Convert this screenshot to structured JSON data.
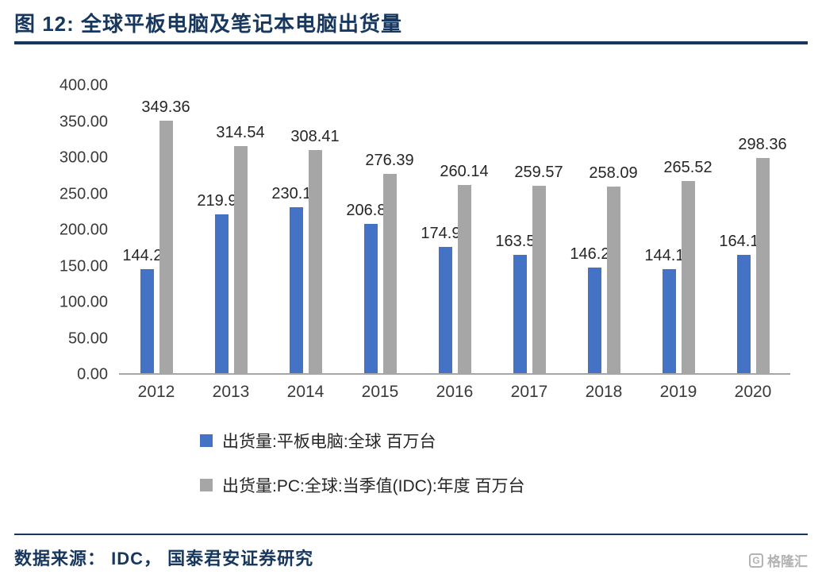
{
  "title": "图 12:  全球平板电脑及笔记本电脑出货量",
  "chart_data": {
    "type": "bar",
    "title": "全球平板电脑及笔记本电脑出货量",
    "categories": [
      "2012",
      "2013",
      "2014",
      "2015",
      "2016",
      "2017",
      "2018",
      "2019",
      "2020"
    ],
    "series": [
      {
        "name": "出货量:平板电脑:全球 百万台",
        "color": "#4472C4",
        "values": [
          144.2,
          219.9,
          230.1,
          206.8,
          174.9,
          163.5,
          146.2,
          144.1,
          164.1
        ]
      },
      {
        "name": "出货量:PC:全球:当季值(IDC):年度 百万台",
        "color": "#A6A6A6",
        "values": [
          349.36,
          314.54,
          308.41,
          276.39,
          260.14,
          259.57,
          258.09,
          265.52,
          298.36
        ]
      }
    ],
    "xlabel": "",
    "ylabel": "",
    "ylim": [
      0,
      400
    ],
    "yticks": [
      "400.00",
      "350.00",
      "300.00",
      "250.00",
      "200.00",
      "150.00",
      "100.00",
      "50.00",
      "0.00"
    ],
    "grid": false,
    "legend_position": "bottom",
    "value_labels": true,
    "unit": "百万台"
  },
  "footer": {
    "source": "数据来源：  IDC，  国泰君安证券研究"
  },
  "watermark": {
    "logo_letter": "G",
    "text": "格隆汇"
  },
  "colors": {
    "accent_navy": "#17375E",
    "bar_blue": "#4472C4",
    "bar_gray": "#A6A6A6"
  }
}
